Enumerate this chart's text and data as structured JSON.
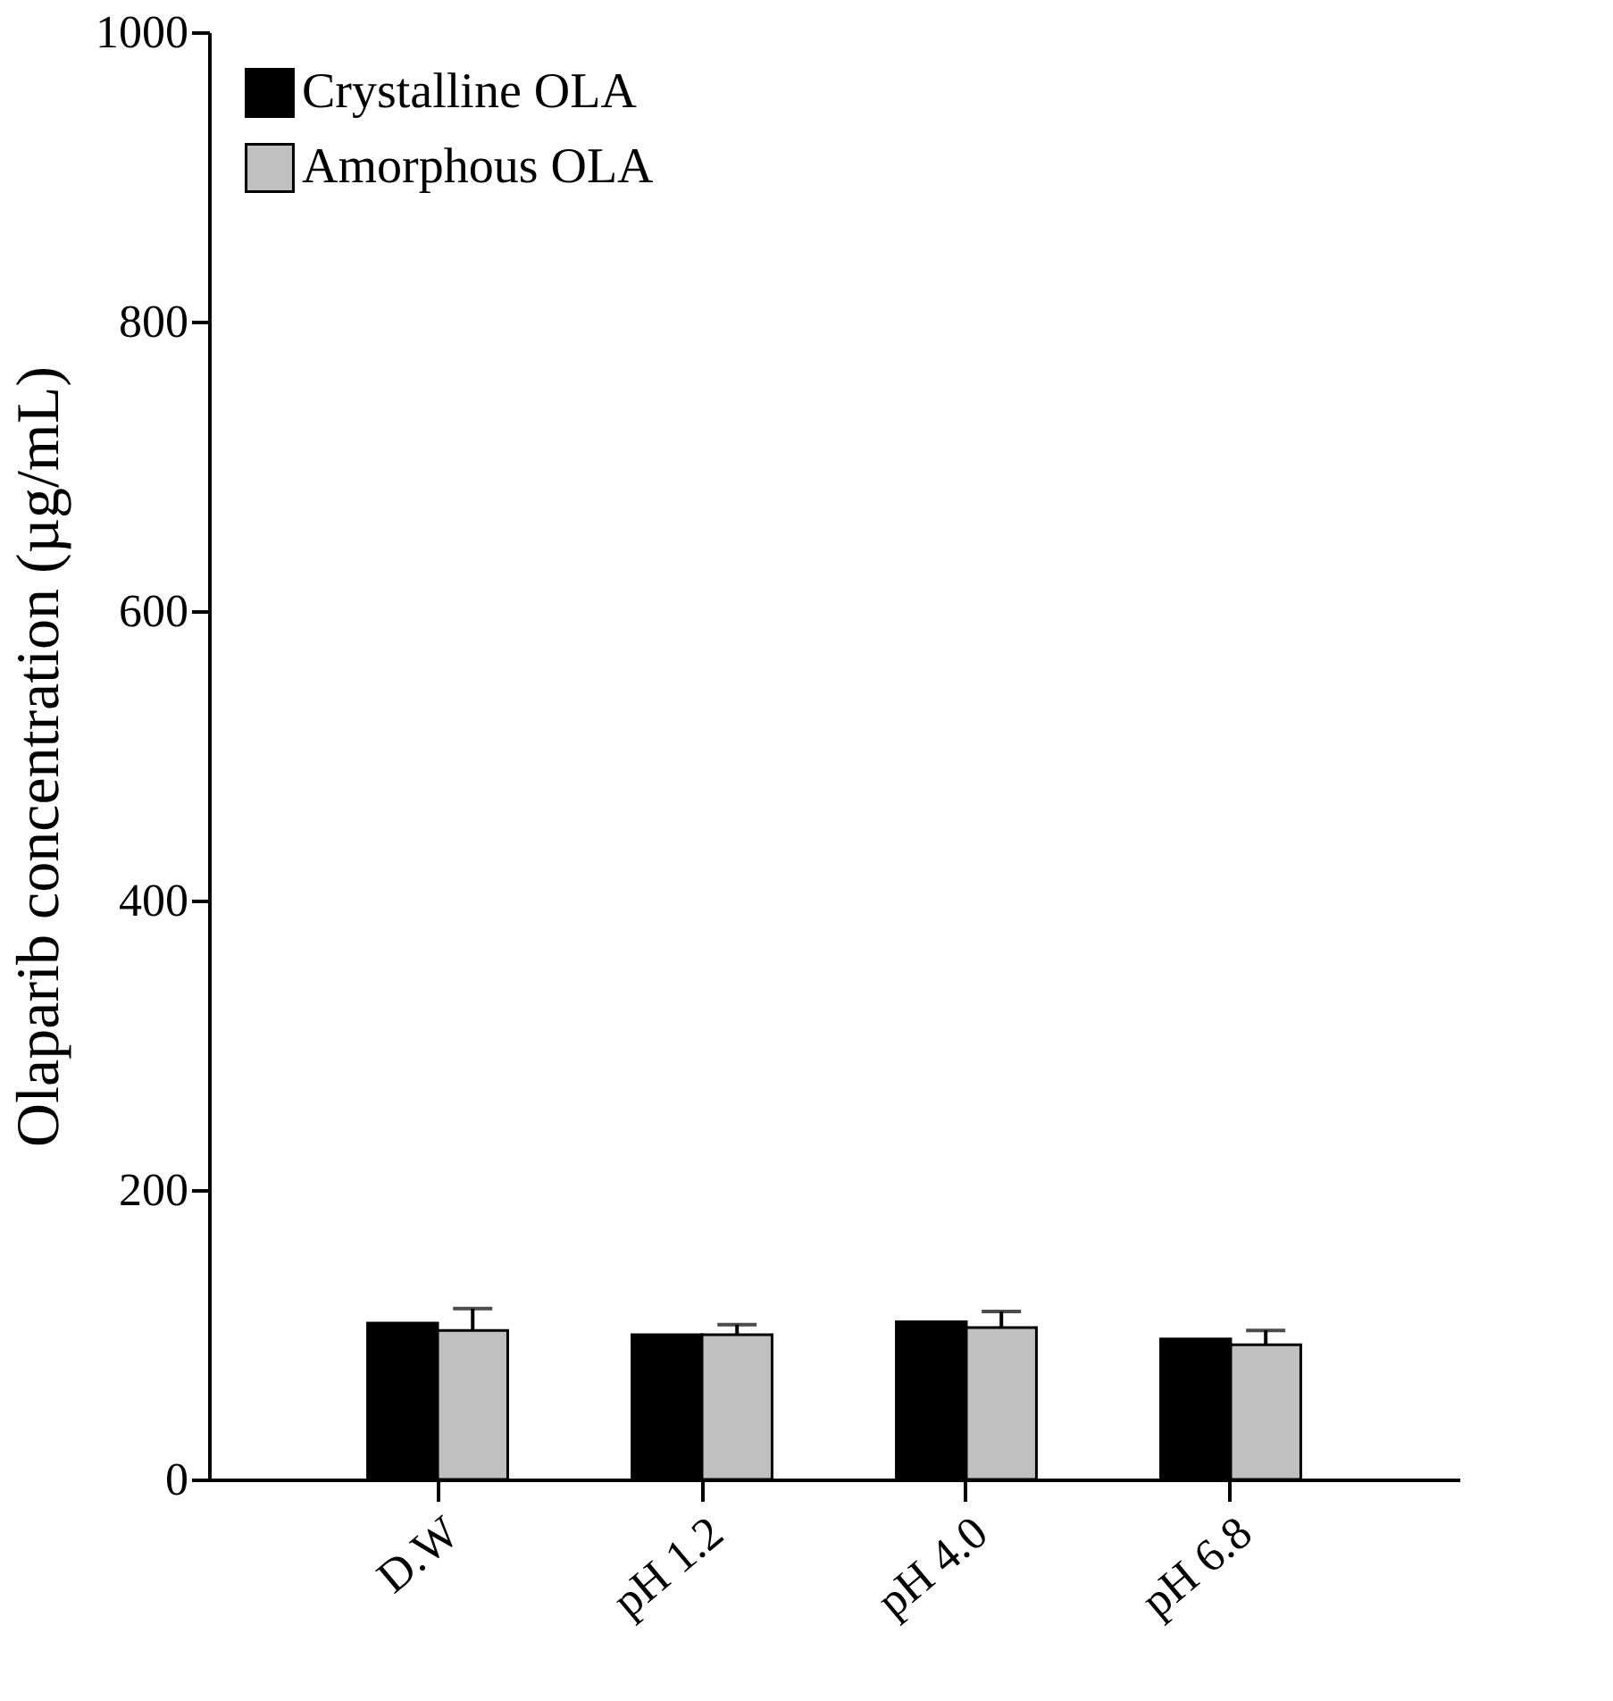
{
  "chart_data": {
    "type": "bar",
    "ylabel": "Olaparib concentration (µg/mL)",
    "categories": [
      "D.W",
      "pH 1.2",
      "pH 4.0",
      "pH 6.8"
    ],
    "series": [
      {
        "name": "Crystalline OLA",
        "color": "#000000",
        "values": [
          108,
          100,
          109,
          97
        ]
      },
      {
        "name": "Amorphous OLA",
        "color": "#c0c0c0",
        "values": [
          103,
          100,
          105,
          93
        ],
        "errors": [
          [
            103,
            118
          ],
          [
            100,
            107
          ],
          [
            105,
            116
          ],
          [
            93,
            103
          ]
        ]
      }
    ],
    "ylim": [
      0,
      1000
    ],
    "yticks": [
      0,
      200,
      400,
      600,
      800,
      1000
    ],
    "grid": false,
    "legend": "top left"
  }
}
